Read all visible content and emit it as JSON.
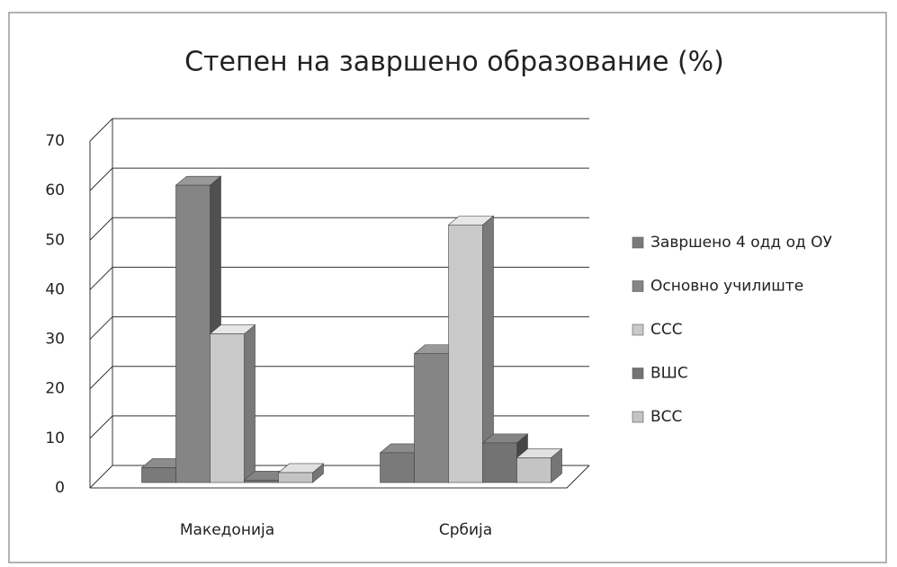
{
  "chart_data": {
    "type": "bar3d",
    "title": "Степен на завршено образование (%)",
    "categories": [
      "Македонија",
      "Србија"
    ],
    "series": [
      {
        "name": "Завршено 4 одд од ОУ",
        "color": "#7a7a7a",
        "values": [
          3,
          6
        ]
      },
      {
        "name": "Основно училиште",
        "color": "#858585",
        "values": [
          60,
          26
        ]
      },
      {
        "name": "ССС",
        "color": "#c9c9c9",
        "values": [
          30,
          52
        ]
      },
      {
        "name": "ВШС",
        "color": "#737373",
        "values": [
          0.5,
          8
        ]
      },
      {
        "name": "ВСС",
        "color": "#c4c4c4",
        "values": [
          2,
          5
        ]
      }
    ],
    "ylim": [
      0,
      70
    ],
    "yticks": [
      0,
      10,
      20,
      30,
      40,
      50,
      60,
      70
    ],
    "grid": true,
    "legend": "right"
  }
}
